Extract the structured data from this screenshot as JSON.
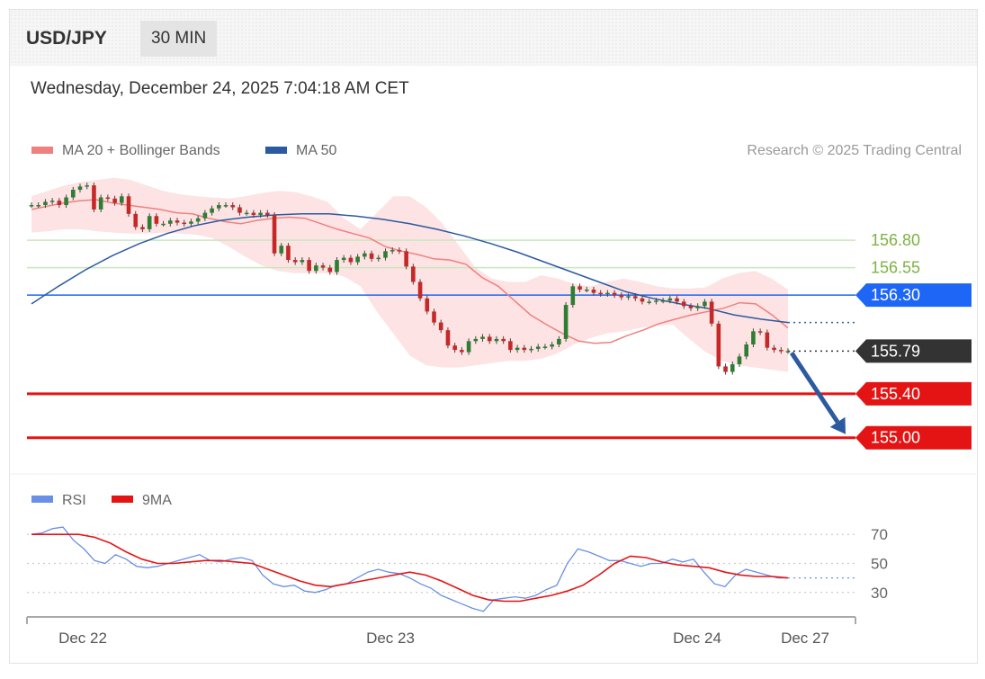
{
  "header": {
    "symbol": "USD/JPY",
    "timeframe": "30 MIN",
    "timestamp": "Wednesday, December 24, 2025 7:04:18 AM CET"
  },
  "legend": {
    "ma20_label": "MA 20 + Bollinger Bands",
    "ma50_label": "MA 50",
    "credit": "Research © 2025 Trading Central",
    "rsi_label": "RSI",
    "rsi_ma_label": "9MA"
  },
  "colors": {
    "ma20": "#f08080",
    "ma50": "#2c5aa0",
    "bollinger": "#fde0e0",
    "resistance": "#7cb342",
    "pivot": "#1e66f5",
    "support": "#e51414",
    "current": "#333333",
    "arrow": "#2c5aa0",
    "rsi": "#6a8fe6",
    "rsi_ma": "#e51414",
    "candle_up": "#2e7d32",
    "candle_down": "#c62828"
  },
  "chart_data": [
    {
      "type": "candlestick",
      "title": "USD/JPY",
      "ylim": [
        154.85,
        157.35
      ],
      "series": [
        {
          "name": "MA 20 + Bollinger Bands"
        },
        {
          "name": "MA 50"
        }
      ],
      "levels": [
        {
          "label": "156.80",
          "value": 156.8,
          "kind": "resistance"
        },
        {
          "label": "156.55",
          "value": 156.55,
          "kind": "resistance"
        },
        {
          "label": "156.30",
          "value": 156.3,
          "kind": "pivot"
        },
        {
          "label": "155.79",
          "value": 155.79,
          "kind": "current"
        },
        {
          "label": "155.40",
          "value": 155.4,
          "kind": "support"
        },
        {
          "label": "155.00",
          "value": 155.0,
          "kind": "support"
        }
      ],
      "close": [
        157.12,
        157.12,
        157.15,
        157.16,
        157.12,
        157.19,
        157.26,
        157.29,
        157.3,
        157.08,
        157.19,
        157.18,
        157.14,
        157.2,
        157.04,
        156.92,
        156.9,
        157.02,
        156.95,
        156.95,
        156.98,
        156.96,
        156.95,
        156.97,
        157.0,
        157.05,
        157.09,
        157.12,
        157.12,
        157.1,
        157.05,
        157.05,
        157.03,
        157.05,
        157.03,
        156.68,
        156.75,
        156.62,
        156.6,
        156.62,
        156.52,
        156.57,
        156.55,
        156.51,
        156.62,
        156.64,
        156.6,
        156.65,
        156.68,
        156.63,
        156.64,
        156.7,
        156.71,
        156.7,
        156.56,
        156.42,
        156.27,
        156.15,
        156.05,
        155.98,
        155.84,
        155.8,
        155.78,
        155.88,
        155.9,
        155.92,
        155.88,
        155.9,
        155.88,
        155.8,
        155.82,
        155.8,
        155.81,
        155.83,
        155.83,
        155.85,
        155.9,
        156.21,
        156.38,
        156.35,
        156.35,
        156.32,
        156.31,
        156.32,
        156.3,
        156.28,
        156.29,
        156.27,
        156.24,
        156.24,
        156.25,
        156.25,
        156.27,
        156.24,
        156.2,
        156.18,
        156.2,
        156.24,
        156.04,
        155.65,
        155.6,
        155.67,
        155.74,
        155.85,
        155.97,
        155.96,
        155.82,
        155.8,
        155.79,
        155.79
      ],
      "ma20": [
        157.08,
        157.11,
        157.14,
        157.16,
        157.17,
        157.14,
        157.12,
        157.1,
        157.08,
        157.05,
        157.04,
        157.0,
        156.97,
        156.95,
        156.98,
        157.0,
        157.01,
        157.0,
        156.95,
        156.9,
        156.86,
        156.82,
        156.74,
        156.7,
        156.67,
        156.63,
        156.62,
        156.58,
        156.46,
        156.38,
        156.25,
        156.12,
        156.03,
        155.95,
        155.88,
        155.86,
        155.87,
        155.93,
        155.98,
        156.04,
        156.08,
        156.12,
        156.15,
        156.18,
        156.23,
        156.22,
        156.12,
        156.0
      ],
      "bb_upper": [
        157.2,
        157.25,
        157.3,
        157.33,
        157.35,
        157.37,
        157.35,
        157.3,
        157.25,
        157.22,
        157.2,
        157.19,
        157.18,
        157.2,
        157.23,
        157.25,
        157.24,
        157.2,
        157.15,
        157.0,
        156.9,
        157.05,
        157.2,
        157.2,
        157.1,
        156.95,
        156.75,
        156.55,
        156.45,
        156.42,
        156.42,
        156.48,
        156.45,
        156.4,
        156.38,
        156.42,
        156.45,
        156.42,
        156.38,
        156.36,
        156.36,
        156.37,
        156.45,
        156.5,
        156.52,
        156.45,
        156.35
      ],
      "bb_lower": [
        156.87,
        156.88,
        156.9,
        156.9,
        156.88,
        156.87,
        156.86,
        156.86,
        156.87,
        156.86,
        156.85,
        156.82,
        156.74,
        156.65,
        156.57,
        156.52,
        156.5,
        156.5,
        156.5,
        156.47,
        156.38,
        156.15,
        155.95,
        155.75,
        155.66,
        155.64,
        155.64,
        155.66,
        155.68,
        155.7,
        155.7,
        155.72,
        155.77,
        155.85,
        155.91,
        155.95,
        155.97,
        156.0,
        156.02,
        156.03,
        155.9,
        155.78,
        155.7,
        155.66,
        155.64,
        155.62,
        155.6
      ],
      "ma50": [
        156.22,
        156.38,
        156.53,
        156.66,
        156.77,
        156.86,
        156.93,
        156.98,
        157.01,
        157.03,
        157.04,
        157.04,
        157.02,
        156.99,
        156.95,
        156.9,
        156.84,
        156.77,
        156.69,
        156.6,
        156.51,
        156.42,
        156.33,
        156.27,
        156.22,
        156.18,
        156.12,
        156.08,
        156.05
      ]
    },
    {
      "type": "line",
      "title": "RSI",
      "ylim": [
        15,
        85
      ],
      "yticks": [
        "70",
        "50",
        "30"
      ],
      "series": [
        {
          "name": "RSI",
          "values": [
            70,
            71,
            74,
            75,
            66,
            60,
            52,
            50,
            56,
            53,
            48,
            47,
            48,
            50,
            52,
            54,
            56,
            52,
            51,
            53,
            54,
            52,
            42,
            36,
            34,
            35,
            31,
            30,
            32,
            35,
            36,
            40,
            44,
            46,
            44,
            43,
            40,
            36,
            33,
            28,
            25,
            22,
            19,
            17,
            25,
            26,
            27,
            26,
            28,
            32,
            35,
            50,
            60,
            58,
            55,
            52,
            52,
            50,
            48,
            50,
            50,
            53,
            51,
            53,
            44,
            36,
            34,
            42,
            46,
            44,
            42,
            40,
            40
          ]
        },
        {
          "name": "9MA",
          "values": [
            70,
            70,
            70,
            70,
            68,
            64,
            58,
            53,
            50,
            50,
            51,
            52,
            52,
            51,
            50,
            46,
            42,
            38,
            35,
            34,
            36,
            38,
            40,
            42,
            44,
            42,
            38,
            33,
            28,
            25,
            24,
            24,
            26,
            28,
            31,
            35,
            42,
            50,
            55,
            54,
            51,
            49,
            48,
            47,
            44,
            42,
            41,
            41,
            40
          ]
        }
      ]
    }
  ],
  "xaxis": {
    "labels": [
      "Dec 22",
      "Dec 23",
      "Dec 24",
      "Dec 27"
    ]
  }
}
